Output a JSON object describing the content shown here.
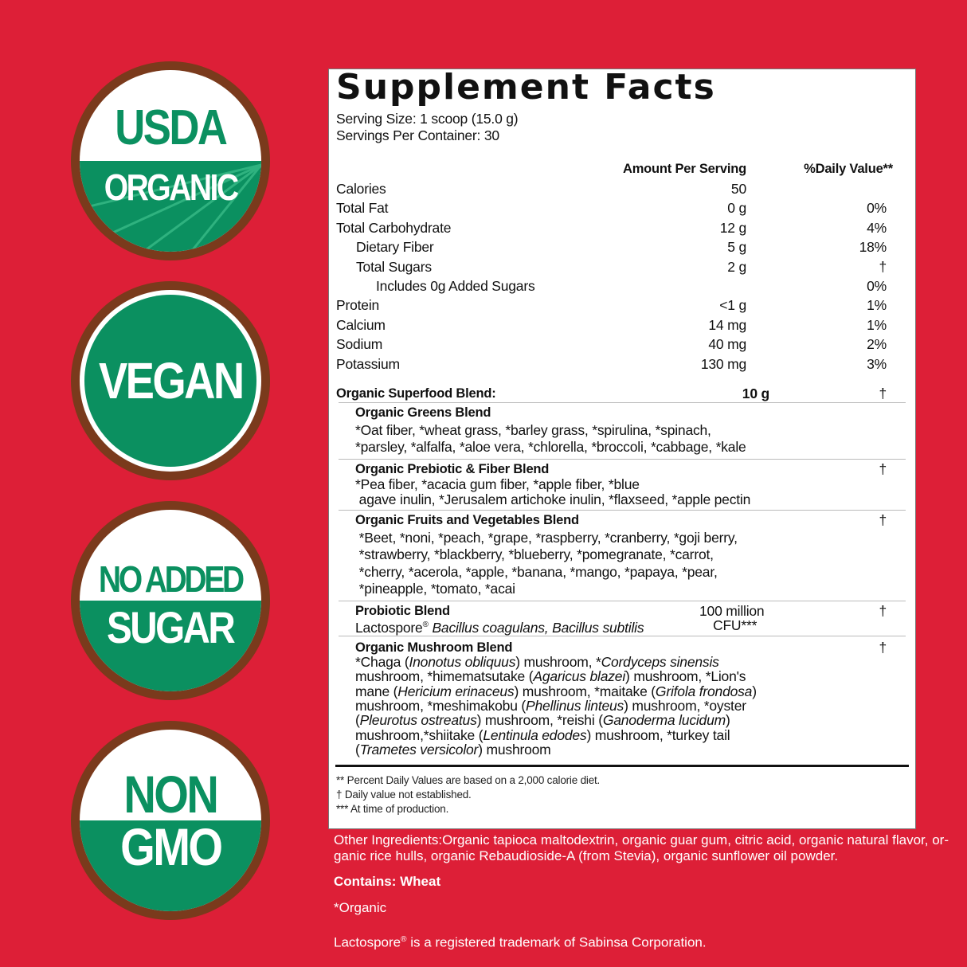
{
  "badges": [
    {
      "top": "USDA",
      "bottom": "ORGANIC"
    },
    {
      "text": "VEGAN"
    },
    {
      "top": "NO ADDED",
      "bottom": "SUGAR"
    },
    {
      "top": "NON",
      "bottom": "GMO"
    }
  ],
  "colors": {
    "background": "#dd1f37",
    "badge_green": "#0b9060",
    "badge_ring": "#7a3a1c"
  },
  "label": {
    "title": "Supplement Facts",
    "serving_size": "Serving Size: 1 scoop (15.0 g)",
    "servings_per_container": "Servings Per Container: 30",
    "col_amount": "Amount Per Serving",
    "col_dv": "%Daily Value**",
    "nutrients": [
      {
        "name": "Calories",
        "amount": "50",
        "dv": "",
        "indent": 0
      },
      {
        "name": "Total Fat",
        "amount": "0 g",
        "dv": "0%",
        "indent": 0
      },
      {
        "name": "Total Carbohydrate",
        "amount": "12 g",
        "dv": "4%",
        "indent": 0
      },
      {
        "name": "Dietary Fiber",
        "amount": "5 g",
        "dv": "18%",
        "indent": 1
      },
      {
        "name": "Total Sugars",
        "amount": "2 g",
        "dv": "†",
        "indent": 1
      },
      {
        "name": "Includes 0g Added Sugars",
        "amount": "",
        "dv": "0%",
        "indent": 2
      },
      {
        "name": "Protein",
        "amount": "<1 g",
        "dv": "1%",
        "indent": 0
      },
      {
        "name": "Calcium",
        "amount": "14 mg",
        "dv": "1%",
        "indent": 0
      },
      {
        "name": "Sodium",
        "amount": "40 mg",
        "dv": "2%",
        "indent": 0
      },
      {
        "name": "Potassium",
        "amount": "130 mg",
        "dv": "3%",
        "indent": 0
      }
    ],
    "blend": {
      "name": "Organic Superfood Blend:",
      "amount": "10 g",
      "dv": "†"
    },
    "sub_blends": [
      {
        "name": "Organic Greens Blend",
        "dv": "",
        "lines": [
          "*Oat fiber, *wheat grass, *barley grass, *spirulina, *spinach,",
          "*parsley, *alfalfa, *aloe vera, *chlorella, *broccoli, *cabbage, *kale"
        ]
      },
      {
        "name": "Organic Prebiotic & Fiber Blend",
        "dv": "†",
        "lines": [
          "*Pea fiber, *acacia gum fiber, *apple fiber, *blue",
          " agave inulin, *Jerusalem artichoke inulin, *flaxseed, *apple pectin"
        ]
      },
      {
        "name": "Organic Fruits and Vegetables Blend",
        "dv": "†",
        "lines": [
          " *Beet, *noni, *peach, *grape, *raspberry, *cranberry, *goji berry,",
          " *strawberry, *blackberry, *blueberry, *pomegranate, *carrot,",
          " *cherry, *acerola, *apple, *banana, *mango, *papaya, *pear,",
          " *pineapple, *tomato, *acai"
        ]
      }
    ],
    "probiotic": {
      "name": "Probiotic Blend",
      "brand": "Lactospore",
      "reg": "®",
      "species": "Bacillus coagulans, Bacillus subtilis",
      "amount_1": "100 million",
      "amount_2": "CFU***",
      "dv": "†"
    },
    "mushroom": {
      "name": "Organic Mushroom Blend",
      "dv": "†",
      "lines": [
        [
          {
            "t": "*Chaga ("
          },
          {
            "t": "Inonotus obliquus",
            "i": true
          },
          {
            "t": ") mushroom, *"
          },
          {
            "t": "Cordyceps sinensis",
            "i": true
          }
        ],
        [
          {
            "t": "mushroom, *himematsutake ("
          },
          {
            "t": "Agaricus blazei",
            "i": true
          },
          {
            "t": ") mushroom, *Lion's"
          }
        ],
        [
          {
            "t": "mane ("
          },
          {
            "t": "Hericium erinaceus",
            "i": true
          },
          {
            "t": ") mushroom, *maitake ("
          },
          {
            "t": "Grifola frondosa",
            "i": true
          },
          {
            "t": ")"
          }
        ],
        [
          {
            "t": "mushroom, *meshimakobu ("
          },
          {
            "t": "Phellinus linteus",
            "i": true
          },
          {
            "t": ") mushroom, *oyster"
          }
        ],
        [
          {
            "t": "("
          },
          {
            "t": "Pleurotus ostreatus",
            "i": true
          },
          {
            "t": ") mushroom, *reishi ("
          },
          {
            "t": "Ganoderma lucidum",
            "i": true
          },
          {
            "t": ")"
          }
        ],
        [
          {
            "t": "mushroom,*shiitake ("
          },
          {
            "t": "Lentinula edodes",
            "i": true
          },
          {
            "t": ") mushroom, *turkey tail"
          }
        ],
        [
          {
            "t": "("
          },
          {
            "t": "Trametes versicolor",
            "i": true
          },
          {
            "t": ") mushroom"
          }
        ]
      ]
    },
    "footnotes": [
      "** Percent Daily Values are based on a 2,000 calorie diet.",
      "† Daily value not established.",
      "*** At time of production."
    ]
  },
  "other": {
    "ingredients_1": "Other Ingredients:Organic tapioca maltodextrin, organic guar gum, citric acid, organic natural flavor, or-",
    "ingredients_2": "ganic rice hulls, organic Rebaudioside-A (from Stevia), organic sunflower oil powder.",
    "contains": "Contains: Wheat",
    "organic_note": "*Organic",
    "trademark_brand": "Lactospore",
    "trademark_reg": "®",
    "trademark_rest": " is a registered trademark of Sabinsa Corporation."
  }
}
